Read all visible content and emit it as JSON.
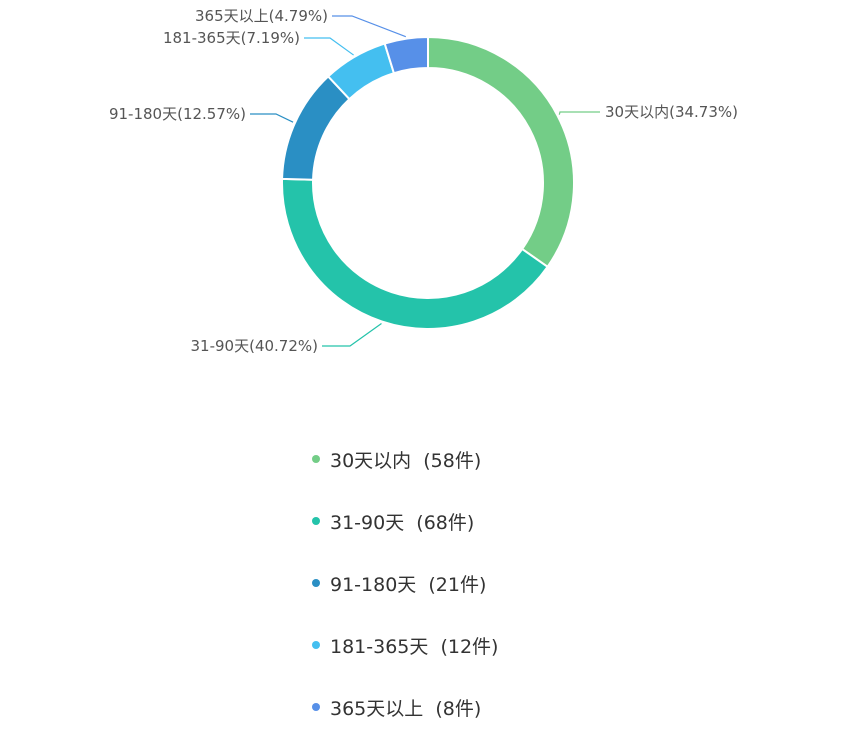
{
  "chart_data": {
    "type": "pie",
    "variant": "donut",
    "categories": [
      "30天以内",
      "31-90天",
      "91-180天",
      "181-365天",
      "365天以上"
    ],
    "values": [
      58,
      68,
      21,
      12,
      8
    ],
    "percentages": [
      34.73,
      40.72,
      12.57,
      7.19,
      4.79
    ],
    "colors": [
      "#73cd87",
      "#24c3aa",
      "#2a8fc4",
      "#44bff0",
      "#5790e8"
    ],
    "slice_labels": [
      "30天以内(34.73%)",
      "31-90天(40.72%)",
      "91-180天(12.57%)",
      "181-365天(7.19%)",
      "365天以上(4.79%)"
    ],
    "legend_entries": [
      "30天以内  (58件)",
      "31-90天  (68件)",
      "91-180天  (21件)",
      "181-365天  (12件)",
      "365天以上  (8件)"
    ],
    "legend_position": "bottom"
  }
}
